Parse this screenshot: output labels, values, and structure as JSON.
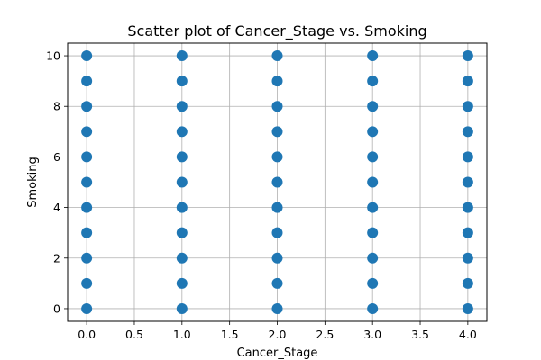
{
  "chart_data": {
    "type": "scatter",
    "title": "Scatter plot of Cancer_Stage vs. Smoking",
    "xlabel": "Cancer_Stage",
    "ylabel": "Smoking",
    "xlim": [
      -0.2,
      4.2
    ],
    "ylim": [
      -0.5,
      10.5
    ],
    "xticks": [
      0.0,
      0.5,
      1.0,
      1.5,
      2.0,
      2.5,
      3.0,
      3.5,
      4.0
    ],
    "xtick_labels": [
      "0.0",
      "0.5",
      "1.0",
      "1.5",
      "2.0",
      "2.5",
      "3.0",
      "3.5",
      "4.0"
    ],
    "yticks": [
      0,
      2,
      4,
      6,
      8,
      10
    ],
    "ytick_labels": [
      "0",
      "2",
      "4",
      "6",
      "8",
      "10"
    ],
    "grid": true,
    "legend": "none",
    "colors": {
      "marker": "#1f77b4",
      "grid": "#b0b0b0",
      "axes": "#000000"
    },
    "series": [
      {
        "x": [
          0,
          0,
          0,
          0,
          0,
          0,
          0,
          0,
          0,
          0,
          0,
          1,
          1,
          1,
          1,
          1,
          1,
          1,
          1,
          1,
          1,
          1,
          2,
          2,
          2,
          2,
          2,
          2,
          2,
          2,
          2,
          2,
          2,
          3,
          3,
          3,
          3,
          3,
          3,
          3,
          3,
          3,
          3,
          3,
          4,
          4,
          4,
          4,
          4,
          4,
          4,
          4,
          4,
          4,
          4
        ],
        "y": [
          0,
          1,
          2,
          3,
          4,
          5,
          6,
          7,
          8,
          9,
          10,
          0,
          1,
          2,
          3,
          4,
          5,
          6,
          7,
          8,
          9,
          10,
          0,
          1,
          2,
          3,
          4,
          5,
          6,
          7,
          8,
          9,
          10,
          0,
          1,
          2,
          3,
          4,
          5,
          6,
          7,
          8,
          9,
          10,
          0,
          1,
          2,
          3,
          4,
          5,
          6,
          7,
          8,
          9,
          10
        ]
      }
    ]
  }
}
